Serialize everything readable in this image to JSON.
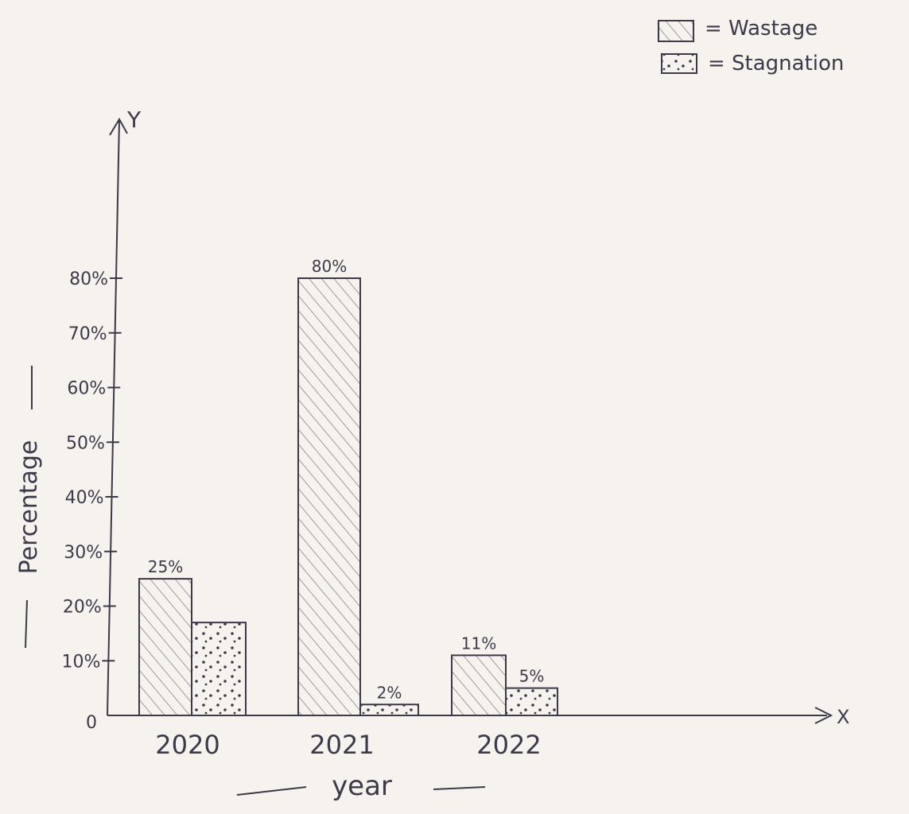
{
  "chart_data": {
    "type": "bar",
    "title": "",
    "xlabel": "year",
    "ylabel": "Percentage",
    "x_axis_letter": "X",
    "y_axis_letter": "Y",
    "origin_label": "0",
    "categories": [
      "2020",
      "2021",
      "2022"
    ],
    "series": [
      {
        "name": "Wastage",
        "values": [
          25,
          80,
          11
        ],
        "data_labels": [
          "25%",
          "80%",
          "11%"
        ],
        "pattern": "diagonal-hatch",
        "color": "#3a3a48"
      },
      {
        "name": "Stagnation",
        "values": [
          17,
          2,
          5
        ],
        "data_labels": [
          "",
          "2%",
          "5%"
        ],
        "pattern": "dots",
        "color": "#3a3a48"
      }
    ],
    "y_ticks": [
      "10%",
      "20%",
      "30%",
      "40%",
      "50%",
      "60%",
      "70%",
      "80%"
    ],
    "y_tick_values": [
      10,
      20,
      30,
      40,
      50,
      60,
      70,
      80
    ],
    "ylim": [
      0,
      80
    ],
    "legend": {
      "position": "top-right",
      "items": [
        {
          "symbol": "diagonal-hatch",
          "text": "= Wastage"
        },
        {
          "symbol": "dots",
          "text": "= Stagnation"
        }
      ]
    },
    "grid": false
  }
}
